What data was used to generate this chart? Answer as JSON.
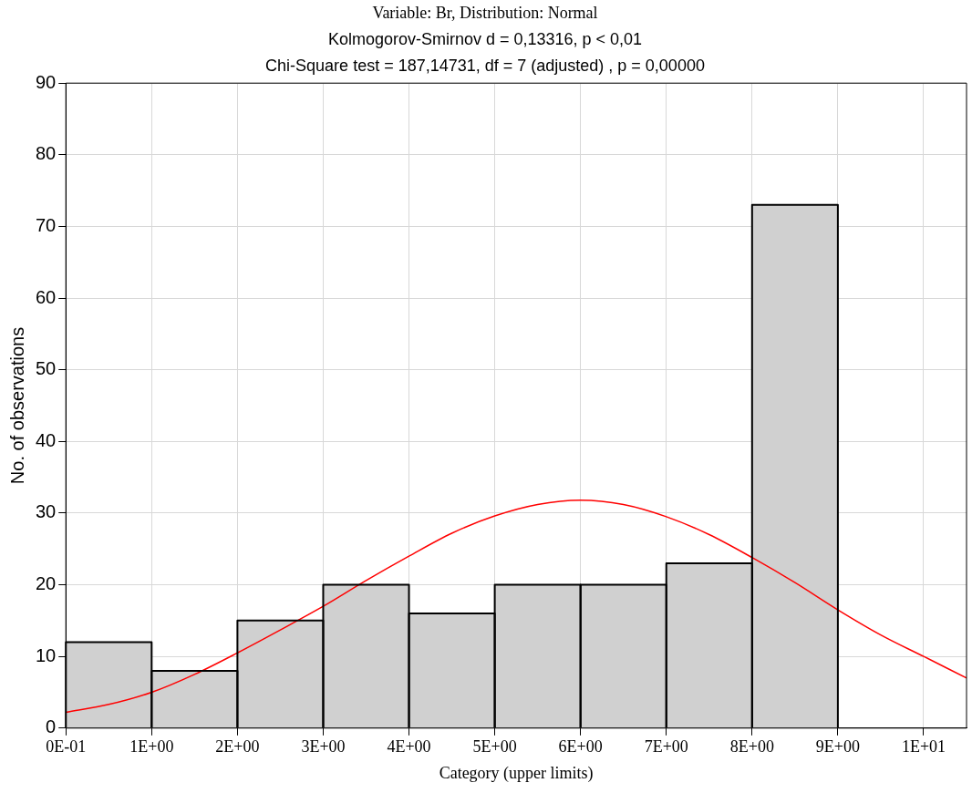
{
  "chart_data": {
    "type": "histogram",
    "title": "Variable: Br, Distribution: Normal",
    "subtitle": "Kolmogorov-Smirnov d = 0,13316, p < 0,01\nChi-Square test = 187,14731, df = 7 (adjusted) , p = 0,00000",
    "xlabel": "Category (upper limits)",
    "ylabel": "No. of observations",
    "bins": [
      0,
      1,
      2,
      3,
      4,
      5,
      6,
      7,
      8,
      9
    ],
    "values": [
      12,
      8,
      15,
      20,
      16,
      20,
      20,
      23,
      73
    ],
    "color": "#d0d0d0",
    "series": [
      {
        "type": "line",
        "color": "#ff0000",
        "x": [
          0,
          0.5,
          1,
          1.5,
          2,
          2.5,
          3,
          3.5,
          4,
          4.5,
          5,
          5.5,
          6,
          6.5,
          7,
          7.5,
          8,
          8.5,
          9,
          9.5,
          10,
          10.5
        ],
        "values": [
          2.2,
          3.3,
          5,
          7.5,
          10.5,
          13.7,
          17,
          20.6,
          24,
          27.2,
          29.6,
          31.2,
          31.8,
          31.2,
          29.5,
          27,
          23.8,
          20.3,
          16.5,
          13,
          10,
          7
        ]
      }
    ],
    "xlim": [
      0,
      10.5
    ],
    "xticks": [
      {
        "value": 0,
        "label": "0E-01"
      },
      {
        "value": 1,
        "label": "1E+00"
      },
      {
        "value": 2,
        "label": "2E+00"
      },
      {
        "value": 3,
        "label": "3E+00"
      },
      {
        "value": 4,
        "label": "4E+00"
      },
      {
        "value": 5,
        "label": "5E+00"
      },
      {
        "value": 6,
        "label": "6E+00"
      },
      {
        "value": 7,
        "label": "7E+00"
      },
      {
        "value": 8,
        "label": "8E+00"
      },
      {
        "value": 9,
        "label": "9E+00"
      },
      {
        "value": 10,
        "label": "1E+01"
      }
    ],
    "ylim": [
      0,
      90
    ],
    "yticks": [
      0,
      10,
      20,
      30,
      40,
      50,
      60,
      70,
      80,
      90
    ],
    "grid": true,
    "legend": false
  }
}
